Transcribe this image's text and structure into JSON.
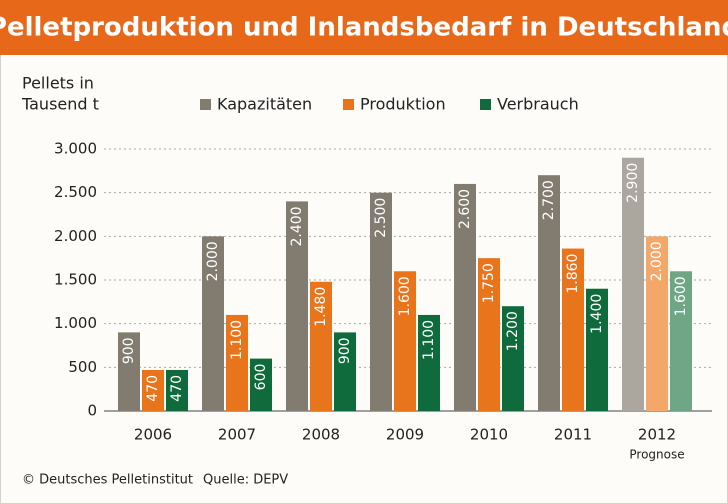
{
  "chart_data": {
    "type": "bar",
    "title": "Pelletproduktion und Inlandsbedarf in Deutschland",
    "y_label_lines": [
      "Pellets in",
      "Tausend t"
    ],
    "categories": [
      "2006",
      "2007",
      "2008",
      "2009",
      "2010",
      "2011",
      "2012"
    ],
    "category_sublabels": [
      null,
      null,
      null,
      null,
      null,
      null,
      "Prognose"
    ],
    "series": [
      {
        "name": "Kapazitäten",
        "color": "#817b70",
        "colors": [
          "#817b70",
          "#817b70",
          "#817b70",
          "#817b70",
          "#817b70",
          "#817b70",
          "#aca79e"
        ],
        "values": [
          900,
          2000,
          2400,
          2500,
          2600,
          2700,
          2900
        ],
        "value_labels": [
          "900",
          "2.000",
          "2.400",
          "2.500",
          "2.600",
          "2.700",
          "2.900"
        ]
      },
      {
        "name": "Produktion",
        "color": "#e8741c",
        "colors": [
          "#e8741c",
          "#e8741c",
          "#e8741c",
          "#e8741c",
          "#e8741c",
          "#e8741c",
          "#f3a86a"
        ],
        "values": [
          470,
          1100,
          1480,
          1600,
          1750,
          1860,
          2000
        ],
        "value_labels": [
          "470",
          "1.100",
          "1.480",
          "1.600",
          "1.750",
          "1.860",
          "2.000"
        ]
      },
      {
        "name": "Verbrauch",
        "color": "#0f6b3b",
        "colors": [
          "#0f6b3b",
          "#0f6b3b",
          "#0f6b3b",
          "#0f6b3b",
          "#0f6b3b",
          "#0f6b3b",
          "#6fa686"
        ],
        "values": [
          470,
          600,
          900,
          1100,
          1200,
          1400,
          1600
        ],
        "value_labels": [
          "470",
          "600",
          "900",
          "1.100",
          "1.200",
          "1.400",
          "1.600"
        ]
      }
    ],
    "ylim": [
      0,
      3000
    ],
    "yticks": [
      0,
      500,
      {
        "value": 1000,
        "label": "1.000"
      },
      {
        "value": 1500,
        "label": "1.500"
      },
      {
        "value": 2000,
        "label": "2.000"
      },
      {
        "value": 2500,
        "label": "2.500"
      },
      {
        "value": 3000,
        "label": "3.000"
      }
    ],
    "grid": true,
    "footer": {
      "copyright": "© Deutsches Pelletinstitut",
      "source": "Quelle: DEPV"
    }
  }
}
